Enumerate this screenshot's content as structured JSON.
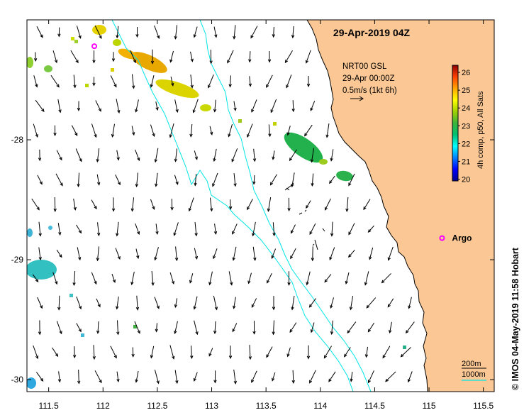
{
  "map": {
    "title": "29-Apr-2019 04Z",
    "info_lines": [
      "NRT00 GSL",
      "29-Apr 00:00Z",
      "0.5m/s (1kt 6h)"
    ],
    "lon_ticks": [
      111.5,
      112,
      112.5,
      113,
      113.5,
      114,
      114.5,
      115,
      115.5
    ],
    "lat_ticks": [
      -28,
      -29,
      -30
    ],
    "lon_range": [
      111.3,
      115.6
    ],
    "lat_range": [
      -30.1,
      -27.0
    ],
    "land_color": "#fbc895",
    "isobath_color": "#00e5e5",
    "argo_label": "Argo",
    "argo_color": "#ff00ff",
    "argo_floats": [
      {
        "label": "",
        "lon": 111.92,
        "lat": -27.22
      },
      {
        "label": "Argo",
        "lon": 115.12,
        "lat": -28.82
      }
    ],
    "isobath_legend": [
      "200m",
      "1000m"
    ],
    "credit": "© IMOS 04-May-2019 11:58 Hobart"
  },
  "colorbar": {
    "ticks": [
      20,
      21,
      22,
      23,
      24,
      25,
      26
    ],
    "range": [
      19.9,
      26.4
    ],
    "label": "4h comp, p50, All Sats",
    "stops": [
      "#00008f",
      "#0000ff",
      "#0080ff",
      "#00ffff",
      "#00c070",
      "#3cb33c",
      "#a0d000",
      "#ffff00",
      "#ffa500",
      "#ff4000",
      "#900000"
    ]
  }
}
